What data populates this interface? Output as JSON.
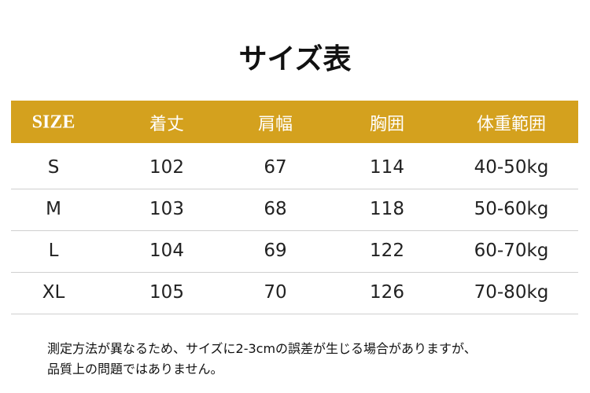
{
  "header": {
    "title": "サイズ表"
  },
  "table": {
    "columns": [
      "SIZE",
      "着丈",
      "肩幅",
      "胸囲",
      "体重範囲"
    ],
    "rows": [
      [
        "S",
        "102",
        "67",
        "114",
        "40-50kg"
      ],
      [
        "M",
        "103",
        "68",
        "118",
        "50-60kg"
      ],
      [
        "L",
        "104",
        "69",
        "122",
        "60-70kg"
      ],
      [
        "XL",
        "105",
        "70",
        "126",
        "70-80kg"
      ]
    ]
  },
  "note": {
    "lines": [
      "測定方法が異なるため、サイズに2-3cmの誤差が生じる場合がありますが、",
      "品質上の問題ではありません。"
    ]
  }
}
